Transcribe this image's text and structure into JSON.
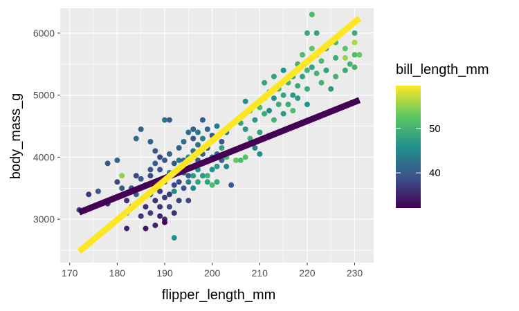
{
  "chart_data": {
    "type": "scatter",
    "xlabel": "flipper_length_mm",
    "ylabel": "body_mass_g",
    "xlim": [
      168,
      234
    ],
    "ylim": [
      2300,
      6400
    ],
    "x_ticks": [
      170,
      180,
      190,
      200,
      210,
      220,
      230
    ],
    "y_ticks": [
      3000,
      4000,
      5000,
      6000
    ],
    "grid": true,
    "background": "#EBEBEB",
    "legend": {
      "title": "bill_length_mm",
      "placement": "right",
      "range": [
        32.1,
        59.6
      ],
      "ticks": [
        40,
        50
      ],
      "colors": [
        "#440154",
        "#3B528B",
        "#21908C",
        "#5DC863",
        "#FDE725"
      ]
    },
    "lines": [
      {
        "name": "",
        "color": "#440154",
        "x": [
          172,
          231
        ],
        "y": [
          3110,
          4920
        ]
      },
      {
        "name": "",
        "color": "#FDE725",
        "x": [
          172,
          231
        ],
        "y": [
          2480,
          6240
        ]
      }
    ],
    "points": [
      [
        172,
        3150,
        38
      ],
      [
        174,
        3400,
        37
      ],
      [
        176,
        3450,
        39
      ],
      [
        178,
        3900,
        40
      ],
      [
        178,
        3250,
        36
      ],
      [
        180,
        3950,
        41
      ],
      [
        180,
        3600,
        38
      ],
      [
        181,
        3700,
        55
      ],
      [
        181,
        3500,
        40
      ],
      [
        182,
        3300,
        36
      ],
      [
        182,
        3100,
        37
      ],
      [
        182,
        2850,
        35
      ],
      [
        183,
        3200,
        36
      ],
      [
        183,
        3500,
        39
      ],
      [
        184,
        3700,
        38
      ],
      [
        184,
        3400,
        40
      ],
      [
        184,
        4300,
        42
      ],
      [
        185,
        3650,
        40
      ],
      [
        185,
        3050,
        37
      ],
      [
        185,
        4450,
        41
      ],
      [
        186,
        3550,
        39
      ],
      [
        186,
        3200,
        36
      ],
      [
        186,
        2850,
        34
      ],
      [
        187,
        3700,
        38
      ],
      [
        187,
        3400,
        40
      ],
      [
        187,
        3100,
        37
      ],
      [
        187,
        3800,
        39
      ],
      [
        187,
        4250,
        40
      ],
      [
        188,
        3300,
        36
      ],
      [
        188,
        2900,
        35
      ],
      [
        188,
        3550,
        38
      ],
      [
        188,
        3900,
        40
      ],
      [
        188,
        4100,
        39
      ],
      [
        189,
        3450,
        37
      ],
      [
        189,
        3800,
        39
      ],
      [
        189,
        4000,
        38
      ],
      [
        189,
        3200,
        36
      ],
      [
        189,
        3050,
        35
      ],
      [
        190,
        3600,
        38
      ],
      [
        190,
        3950,
        40
      ],
      [
        190,
        4600,
        42
      ],
      [
        190,
        3350,
        37
      ],
      [
        190,
        3000,
        36
      ],
      [
        190,
        2950,
        32
      ],
      [
        191,
        3700,
        39
      ],
      [
        191,
        4050,
        41
      ],
      [
        191,
        3400,
        37
      ],
      [
        191,
        3200,
        38
      ],
      [
        191,
        4600,
        40
      ],
      [
        191,
        3750,
        44
      ],
      [
        192,
        3550,
        38
      ],
      [
        192,
        3900,
        40
      ],
      [
        192,
        3100,
        36
      ],
      [
        192,
        3450,
        45
      ],
      [
        192,
        2700,
        46
      ],
      [
        193,
        3800,
        39
      ],
      [
        193,
        4150,
        41
      ],
      [
        193,
        3600,
        38
      ],
      [
        193,
        3300,
        37
      ],
      [
        193,
        3950,
        43
      ],
      [
        194,
        3750,
        40
      ],
      [
        194,
        4250,
        42
      ],
      [
        194,
        3500,
        39
      ],
      [
        194,
        3950,
        41
      ],
      [
        195,
        3700,
        40
      ],
      [
        195,
        4400,
        42
      ],
      [
        195,
        3300,
        38
      ],
      [
        195,
        3600,
        44
      ],
      [
        195,
        4000,
        46
      ],
      [
        196,
        3850,
        40
      ],
      [
        196,
        4100,
        42
      ],
      [
        196,
        3700,
        47
      ],
      [
        196,
        4300,
        39
      ],
      [
        196,
        3500,
        45
      ],
      [
        196,
        4450,
        41
      ],
      [
        197,
        3950,
        40
      ],
      [
        197,
        4400,
        43
      ],
      [
        197,
        3600,
        48
      ],
      [
        197,
        4200,
        42
      ],
      [
        197,
        3800,
        46
      ],
      [
        198,
        3700,
        47
      ],
      [
        198,
        4050,
        41
      ],
      [
        198,
        4600,
        40
      ],
      [
        198,
        4300,
        44
      ],
      [
        198,
        3900,
        49
      ],
      [
        199,
        3600,
        48
      ],
      [
        199,
        4450,
        41
      ],
      [
        199,
        3950,
        45
      ],
      [
        199,
        3700,
        50
      ],
      [
        199,
        4150,
        39
      ],
      [
        200,
        3800,
        46
      ],
      [
        200,
        4000,
        43
      ],
      [
        200,
        3550,
        51
      ],
      [
        200,
        4350,
        40
      ],
      [
        201,
        3850,
        47
      ],
      [
        201,
        4050,
        42
      ],
      [
        201,
        4500,
        44
      ],
      [
        201,
        3600,
        49
      ],
      [
        202,
        3950,
        41
      ],
      [
        202,
        4150,
        48
      ],
      [
        202,
        4250,
        39
      ],
      [
        203,
        3850,
        45
      ],
      [
        203,
        4400,
        43
      ],
      [
        203,
        4000,
        50
      ],
      [
        204,
        3550,
        40
      ],
      [
        205,
        3950,
        53
      ],
      [
        206,
        3950,
        51
      ],
      [
        206,
        4550,
        48
      ],
      [
        207,
        4450,
        47
      ],
      [
        207,
        4000,
        52
      ],
      [
        207,
        4900,
        46
      ],
      [
        208,
        4300,
        50
      ],
      [
        208,
        4750,
        49
      ],
      [
        209,
        4150,
        44
      ],
      [
        209,
        4600,
        47
      ],
      [
        210,
        4050,
        46
      ],
      [
        210,
        4400,
        48
      ],
      [
        210,
        4800,
        51
      ],
      [
        211,
        4700,
        49
      ],
      [
        211,
        4950,
        50
      ],
      [
        211,
        5200,
        48
      ],
      [
        212,
        4750,
        45
      ],
      [
        212,
        5050,
        47
      ],
      [
        212,
        4350,
        49
      ],
      [
        213,
        4600,
        50
      ],
      [
        213,
        4950,
        46
      ],
      [
        213,
        5300,
        48
      ],
      [
        214,
        4850,
        49
      ],
      [
        214,
        5100,
        50
      ],
      [
        215,
        4700,
        47
      ],
      [
        215,
        5000,
        48
      ],
      [
        215,
        5400,
        46
      ],
      [
        216,
        4850,
        49
      ],
      [
        216,
        5200,
        50
      ],
      [
        217,
        5000,
        47
      ],
      [
        217,
        5300,
        48
      ],
      [
        217,
        4750,
        51
      ],
      [
        218,
        5150,
        49
      ],
      [
        218,
        5500,
        50
      ],
      [
        218,
        4950,
        47
      ],
      [
        219,
        5300,
        48
      ],
      [
        219,
        5650,
        51
      ],
      [
        220,
        5100,
        49
      ],
      [
        220,
        5400,
        50
      ],
      [
        220,
        4850,
        46
      ],
      [
        220,
        6000,
        49
      ],
      [
        221,
        5450,
        48
      ],
      [
        221,
        5750,
        52
      ],
      [
        221,
        6300,
        51
      ],
      [
        222,
        5350,
        50
      ],
      [
        222,
        5650,
        49
      ],
      [
        222,
        6000,
        48
      ],
      [
        223,
        5200,
        50
      ],
      [
        223,
        5550,
        51
      ],
      [
        224,
        5750,
        49
      ],
      [
        224,
        5400,
        48
      ],
      [
        225,
        5850,
        50
      ],
      [
        225,
        5100,
        47
      ],
      [
        226,
        5600,
        49
      ],
      [
        226,
        5300,
        50
      ],
      [
        226,
        5850,
        51
      ],
      [
        228,
        5400,
        49
      ],
      [
        228,
        5600,
        55
      ],
      [
        228,
        5750,
        52
      ],
      [
        229,
        5500,
        50
      ],
      [
        230,
        5650,
        51
      ],
      [
        230,
        5850,
        56
      ],
      [
        230,
        6000,
        49
      ],
      [
        230,
        5450,
        50
      ],
      [
        231,
        5650,
        53
      ]
    ]
  }
}
